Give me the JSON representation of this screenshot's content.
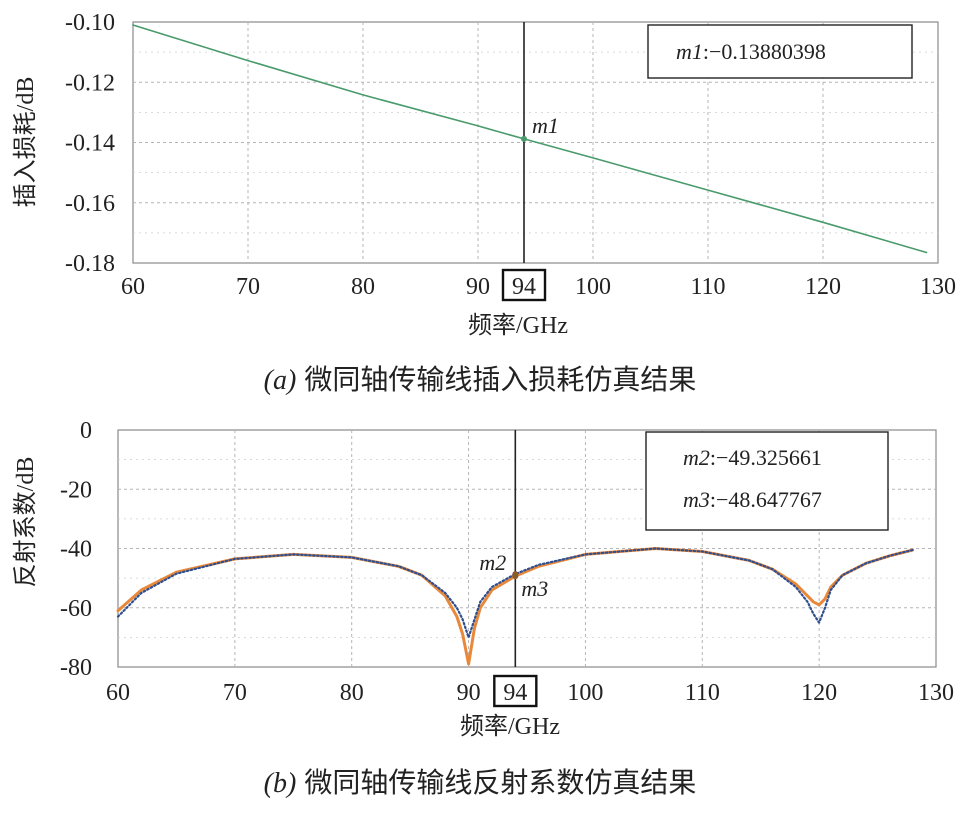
{
  "charts": [
    {
      "id": "a",
      "ylabel": "插入损耗/dB",
      "xlabel": "频率/GHz",
      "caption_label": "(a)",
      "caption": "微同轴传输线插入损耗仿真结果",
      "highlight_tick": "94",
      "readouts": [
        {
          "label": "m1",
          "value": ":−0.13880398"
        }
      ]
    },
    {
      "id": "b",
      "ylabel": "反射系数/dB",
      "xlabel": "频率/GHz",
      "caption_label": "(b)",
      "caption": "微同轴传输线反射系数仿真结果",
      "highlight_tick": "94",
      "readouts": [
        {
          "label": "m2",
          "value": ":−49.325661"
        },
        {
          "label": "m3",
          "value": ":−48.647767"
        }
      ]
    }
  ],
  "chart_data": [
    {
      "type": "line",
      "xlim": [
        60,
        130
      ],
      "ylim": [
        -0.18,
        -0.1
      ],
      "xticks": [
        60,
        70,
        80,
        90,
        94,
        100,
        110,
        120,
        130
      ],
      "yticks": [
        -0.1,
        -0.12,
        -0.14,
        -0.16,
        -0.18
      ],
      "ytick_labels": [
        "-0.10",
        "-0.12",
        "-0.14",
        "-0.16",
        "-0.18"
      ],
      "grid": true,
      "colors": {
        "line": "#4a9b6b",
        "marker_line": "#222222"
      },
      "series": [
        {
          "x": [
            60,
            70,
            80,
            90,
            94,
            100,
            110,
            120,
            129
          ],
          "y": [
            -0.101,
            -0.1128,
            -0.1242,
            -0.1345,
            -0.1388,
            -0.1451,
            -0.1558,
            -0.1665,
            -0.1765
          ]
        }
      ],
      "markers": [
        {
          "name": "m1",
          "x": 94,
          "y": -0.13880398
        }
      ]
    },
    {
      "type": "line",
      "xlim": [
        60,
        130
      ],
      "ylim": [
        -80,
        0
      ],
      "xticks": [
        60,
        70,
        80,
        90,
        94,
        100,
        110,
        120,
        130
      ],
      "yticks": [
        0,
        -20,
        -40,
        -60,
        -80
      ],
      "ytick_labels": [
        "0",
        "-20",
        "-40",
        "-60",
        "-80"
      ],
      "grid": true,
      "colors": {
        "s1": "#e8883a",
        "s2": "#2f4f8f"
      },
      "series": [
        {
          "style": "solid",
          "x": [
            60,
            62,
            65,
            70,
            75,
            80,
            84,
            86,
            88,
            89,
            89.5,
            90,
            90.5,
            91,
            92,
            94,
            96,
            100,
            106,
            110,
            114,
            116,
            118,
            119,
            119.5,
            120,
            120.5,
            121,
            122,
            124,
            126,
            128
          ],
          "y": [
            -61,
            -54,
            -48,
            -43.5,
            -42,
            -43,
            -46,
            -49,
            -56,
            -63,
            -69,
            -79,
            -67,
            -60,
            -54,
            -49.3,
            -46,
            -42,
            -40,
            -41,
            -44,
            -47,
            -52,
            -56,
            -58,
            -59,
            -57,
            -53,
            -49,
            -45,
            -42.5,
            -40.5
          ]
        },
        {
          "style": "dotted",
          "x": [
            60,
            62,
            65,
            70,
            75,
            80,
            84,
            86,
            88,
            89,
            89.5,
            90,
            90.5,
            91,
            92,
            94,
            96,
            100,
            106,
            110,
            114,
            116,
            118,
            119,
            119.5,
            120,
            120.5,
            121,
            122,
            124,
            126,
            128
          ],
          "y": [
            -63,
            -55,
            -48.5,
            -43.5,
            -42,
            -43,
            -46,
            -49,
            -55,
            -60,
            -64,
            -70,
            -64,
            -58,
            -53,
            -48.6,
            -45.5,
            -42,
            -40,
            -41,
            -44,
            -47,
            -53,
            -58,
            -62,
            -65,
            -60,
            -54,
            -49,
            -45,
            -42.5,
            -40.5
          ]
        }
      ],
      "markers": [
        {
          "name": "m2",
          "x": 94,
          "y": -49.325661
        },
        {
          "name": "m3",
          "x": 94,
          "y": -48.647767
        }
      ]
    }
  ]
}
